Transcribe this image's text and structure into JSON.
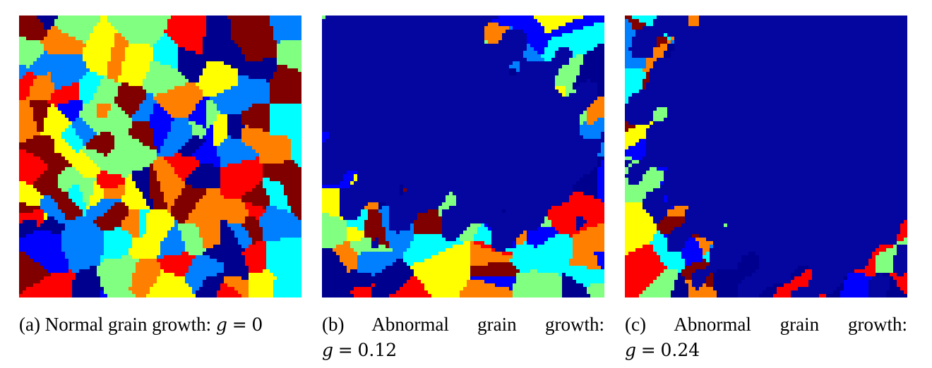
{
  "panels": [
    {
      "id": "a",
      "label": "(a)",
      "caption": "Normal grain growth:",
      "var": "g",
      "eq": "=",
      "value": "0",
      "abnormal_fraction": 0.0
    },
    {
      "id": "b",
      "label": "(b)",
      "caption": "Abnormal grain growth:",
      "var": "g",
      "eq": "=",
      "value": "0.12",
      "abnormal_fraction": 0.45
    },
    {
      "id": "c",
      "label": "(c)",
      "caption": "Abnormal grain growth:",
      "var": "g",
      "eq": "=",
      "value": "0.24",
      "abnormal_fraction": 0.7
    }
  ],
  "colormap": {
    "name": "jet",
    "stops": [
      "#00008f",
      "#0000ff",
      "#0080ff",
      "#00ffff",
      "#80ff80",
      "#ffff00",
      "#ff8000",
      "#ff0000",
      "#800000"
    ],
    "abnormal_grain_color": "#0505a0"
  }
}
